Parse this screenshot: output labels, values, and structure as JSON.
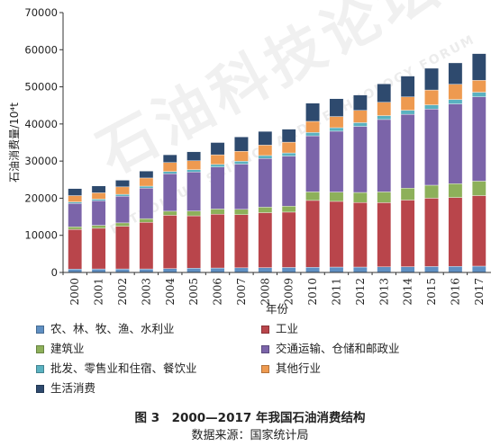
{
  "chart_data": {
    "type": "bar",
    "stacked": true,
    "ylabel": "石油消费量/10⁴t",
    "xlabel": "年份",
    "ylim": [
      0,
      70000
    ],
    "yticks": [
      "0",
      "10000",
      "20000",
      "30000",
      "40000",
      "50000",
      "60000",
      "70000"
    ],
    "categories": [
      "2000",
      "2001",
      "2002",
      "2003",
      "2004",
      "2005",
      "2006",
      "2007",
      "2008",
      "2009",
      "2010",
      "2011",
      "2012",
      "2013",
      "2014",
      "2015",
      "2016",
      "2017"
    ],
    "series": [
      {
        "name": "农、林、牧、渔、水利业",
        "color": "#5f8fc2",
        "values": [
          900,
          950,
          950,
          950,
          1050,
          1150,
          1200,
          1250,
          1300,
          1350,
          1400,
          1450,
          1450,
          1500,
          1550,
          1600,
          1650,
          1700
        ]
      },
      {
        "name": "工业",
        "color": "#b9454b",
        "values": [
          10700,
          10950,
          11500,
          12550,
          14350,
          14100,
          14500,
          14300,
          14800,
          14900,
          18000,
          17700,
          17400,
          17300,
          17950,
          18400,
          18550,
          19000
        ]
      },
      {
        "name": "建筑业",
        "color": "#8db05a",
        "values": [
          700,
          800,
          900,
          1000,
          1100,
          1300,
          1400,
          1450,
          1500,
          1600,
          2300,
          2500,
          2700,
          2900,
          3200,
          3500,
          3700,
          3900
        ]
      },
      {
        "name": "交通运输、仓储和邮政业",
        "color": "#7b64a9",
        "values": [
          6300,
          6600,
          7200,
          8200,
          10100,
          10500,
          11300,
          12200,
          13100,
          13500,
          15100,
          16400,
          17800,
          19500,
          19900,
          20500,
          21500,
          22700
        ]
      },
      {
        "name": "批发、零售业和住宿、餐饮业",
        "color": "#5ab1c0",
        "values": [
          400,
          450,
          500,
          550,
          600,
          650,
          700,
          750,
          800,
          850,
          900,
          950,
          1000,
          1050,
          1100,
          1150,
          1200,
          1250
        ]
      },
      {
        "name": "其他行业",
        "color": "#ee9a50",
        "values": [
          1700,
          1700,
          2000,
          2200,
          2400,
          2400,
          2600,
          2700,
          2800,
          2900,
          3000,
          3000,
          3300,
          3600,
          3600,
          4000,
          4100,
          3200
        ]
      },
      {
        "name": "生活消费",
        "color": "#2e4a6e",
        "values": [
          1900,
          1850,
          1800,
          1850,
          2100,
          2400,
          3300,
          3850,
          3700,
          3500,
          4900,
          4800,
          4150,
          4950,
          5600,
          5850,
          5750,
          7200
        ]
      }
    ],
    "legend_position": "bottom",
    "grid": false
  },
  "legend": {
    "items": [
      {
        "label": "农、林、牧、渔、水利业",
        "color": "#5f8fc2"
      },
      {
        "label": "工业",
        "color": "#b9454b"
      },
      {
        "label": "建筑业",
        "color": "#8db05a"
      },
      {
        "label": "交通运输、仓储和邮政业",
        "color": "#7b64a9"
      },
      {
        "label": "批发、零售业和住宿、餐饮业",
        "color": "#5ab1c0"
      },
      {
        "label": "其他行业",
        "color": "#ee9a50"
      },
      {
        "label": "生活消费",
        "color": "#2e4a6e"
      }
    ]
  },
  "caption": {
    "title": "图 3　2000—2017 年我国石油消费结构",
    "source": "数据来源：国家统计局"
  },
  "watermark": {
    "text": "石油科技论坛",
    "text_en": "PETROLEUM SCIENCE AND TECHNOLOGY FORUM"
  }
}
